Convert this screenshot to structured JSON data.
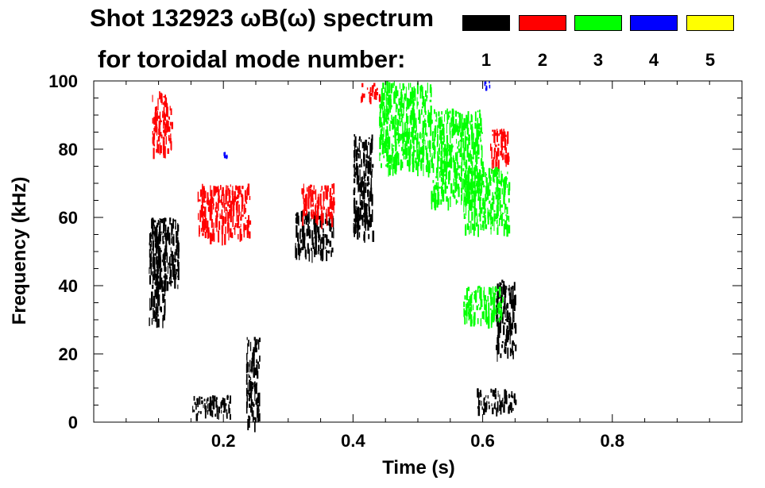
{
  "chart_data": {
    "type": "heatmap",
    "title_line1": "Shot 132923 ωB(ω) spectrum",
    "title_line2": "for toroidal mode number:",
    "xlabel": "Time (s)",
    "ylabel": "Frequency (kHz)",
    "xlim": [
      0.0,
      1.0
    ],
    "ylim": [
      0,
      100
    ],
    "x_ticks": [
      0.2,
      0.4,
      0.6,
      0.8
    ],
    "x_tick_labels": [
      "0.2",
      "0.4",
      "0.6",
      "0.8"
    ],
    "y_ticks": [
      0,
      20,
      40,
      60,
      80,
      100
    ],
    "y_tick_labels": [
      "0",
      "20",
      "40",
      "60",
      "80",
      "100"
    ],
    "legend": [
      {
        "label": "1",
        "color": "#000000"
      },
      {
        "label": "2",
        "color": "#ff0000"
      },
      {
        "label": "3",
        "color": "#00ff00"
      },
      {
        "label": "4",
        "color": "#0000ff"
      },
      {
        "label": "5",
        "color": "#ffff00"
      }
    ],
    "legend_position": "top-right",
    "grid": false,
    "regions": [
      {
        "mode": 1,
        "t": [
          0.085,
          0.11
        ],
        "f": [
          30,
          60
        ]
      },
      {
        "mode": 1,
        "t": [
          0.09,
          0.13
        ],
        "f": [
          40,
          60
        ]
      },
      {
        "mode": 1,
        "t": [
          0.15,
          0.21
        ],
        "f": [
          2,
          8
        ]
      },
      {
        "mode": 1,
        "t": [
          0.235,
          0.255
        ],
        "f": [
          0,
          25
        ]
      },
      {
        "mode": 1,
        "t": [
          0.31,
          0.37
        ],
        "f": [
          50,
          62
        ]
      },
      {
        "mode": 1,
        "t": [
          0.4,
          0.43
        ],
        "f": [
          55,
          85
        ]
      },
      {
        "mode": 1,
        "t": [
          0.59,
          0.65
        ],
        "f": [
          4,
          10
        ]
      },
      {
        "mode": 1,
        "t": [
          0.62,
          0.65
        ],
        "f": [
          20,
          42
        ]
      },
      {
        "mode": 2,
        "t": [
          0.09,
          0.12
        ],
        "f": [
          80,
          97
        ]
      },
      {
        "mode": 2,
        "t": [
          0.16,
          0.24
        ],
        "f": [
          55,
          70
        ]
      },
      {
        "mode": 2,
        "t": [
          0.32,
          0.37
        ],
        "f": [
          60,
          70
        ]
      },
      {
        "mode": 2,
        "t": [
          0.41,
          0.44
        ],
        "f": [
          95,
          100
        ]
      },
      {
        "mode": 2,
        "t": [
          0.61,
          0.64
        ],
        "f": [
          76,
          86
        ]
      },
      {
        "mode": 3,
        "t": [
          0.44,
          0.52
        ],
        "f": [
          75,
          100
        ]
      },
      {
        "mode": 3,
        "t": [
          0.52,
          0.6
        ],
        "f": [
          65,
          92
        ]
      },
      {
        "mode": 3,
        "t": [
          0.57,
          0.64
        ],
        "f": [
          57,
          75
        ]
      },
      {
        "mode": 3,
        "t": [
          0.57,
          0.63
        ],
        "f": [
          30,
          40
        ]
      },
      {
        "mode": 4,
        "t": [
          0.6,
          0.61
        ],
        "f": [
          98,
          100
        ]
      },
      {
        "mode": 4,
        "t": [
          0.2,
          0.205
        ],
        "f": [
          78,
          80
        ]
      }
    ]
  }
}
